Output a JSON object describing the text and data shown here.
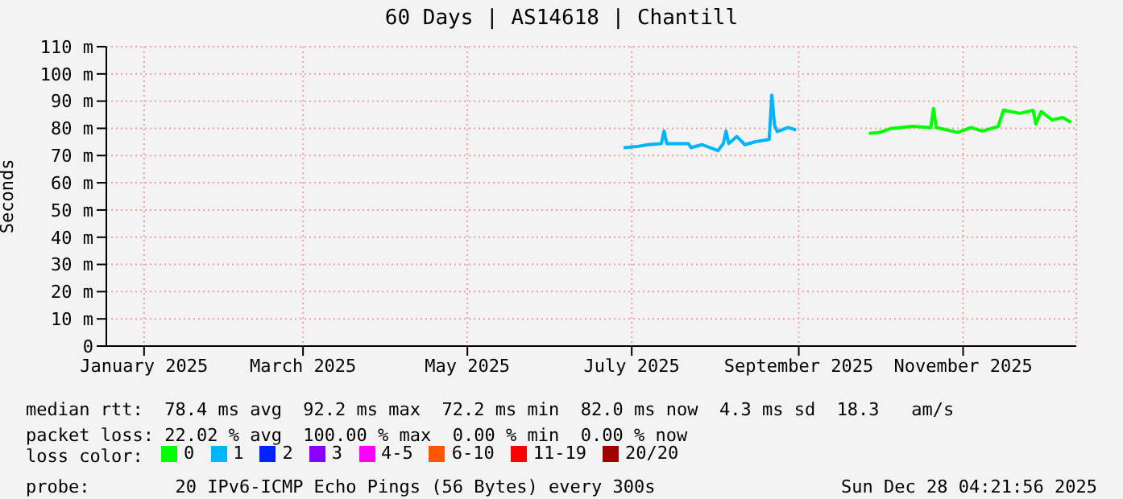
{
  "chart_data": {
    "type": "line",
    "title": "60 Days | AS14618 | Chantill",
    "ylabel": "Seconds",
    "xlim": [
      "2025-01-02",
      "2025-12-28"
    ],
    "xticks": [
      {
        "value": "2025-01-16",
        "label": "January 2025"
      },
      {
        "value": "2025-03-16",
        "label": "March 2025"
      },
      {
        "value": "2025-05-16",
        "label": "May 2025"
      },
      {
        "value": "2025-07-16",
        "label": "July 2025"
      },
      {
        "value": "2025-09-16",
        "label": "September 2025"
      },
      {
        "value": "2025-11-16",
        "label": "November 2025"
      }
    ],
    "ylim": [
      0,
      110
    ],
    "yticks": [
      0,
      {
        "value": 10,
        "label": "10 m"
      },
      {
        "value": 20,
        "label": "20 m"
      },
      {
        "value": 30,
        "label": "30 m"
      },
      {
        "value": 40,
        "label": "40 m"
      },
      {
        "value": 50,
        "label": "50 m"
      },
      {
        "value": 60,
        "label": "60 m"
      },
      {
        "value": 70,
        "label": "70 m"
      },
      {
        "value": 80,
        "label": "80 m"
      },
      {
        "value": 90,
        "label": "90 m"
      },
      {
        "value": 100,
        "label": "100 m"
      },
      {
        "value": 110,
        "label": "110 m"
      }
    ],
    "grid": true,
    "legend": "bottom",
    "legend_title": "loss color:",
    "series": [
      {
        "name": "0",
        "color": "#00ff00",
        "x": [
          "2025-10-12",
          "2025-10-16",
          "2025-10-20",
          "2025-10-28",
          "2025-11-04",
          "2025-11-05",
          "2025-11-06",
          "2025-11-09",
          "2025-11-14",
          "2025-11-19",
          "2025-11-23",
          "2025-11-29",
          "2025-12-01",
          "2025-12-07",
          "2025-12-12",
          "2025-12-13",
          "2025-12-15",
          "2025-12-19",
          "2025-12-23",
          "2025-12-26"
        ],
        "values": [
          78.1,
          78.5,
          79.9,
          80.7,
          80.3,
          87.3,
          80.3,
          79.6,
          78.5,
          80.3,
          79,
          80.7,
          86.7,
          85.5,
          86.6,
          81.6,
          86.2,
          83.1,
          84,
          82.2
        ]
      },
      {
        "name": "1",
        "color": "#00b4ff",
        "x": [
          "2025-07-13",
          "2025-07-18",
          "2025-07-22",
          "2025-07-27",
          "2025-07-28",
          "2025-07-29",
          "2025-08-06",
          "2025-08-07",
          "2025-08-11",
          "2025-08-17",
          "2025-08-19",
          "2025-08-20",
          "2025-08-21",
          "2025-08-24",
          "2025-08-27",
          "2025-08-31",
          "2025-09-05",
          "2025-09-06",
          "2025-09-07",
          "2025-09-08",
          "2025-09-12",
          "2025-09-15"
        ],
        "values": [
          72.9,
          73.3,
          74,
          74.4,
          79,
          74.4,
          74.4,
          72.9,
          74,
          71.8,
          74.4,
          79,
          74.4,
          77,
          74,
          75.1,
          75.9,
          92.2,
          81.2,
          78.8,
          80.3,
          79.4
        ]
      },
      {
        "name": "2",
        "color": "#0022ff"
      },
      {
        "name": "3",
        "color": "#8a00ff"
      },
      {
        "name": "4-5",
        "color": "#ff00ff"
      },
      {
        "name": "6-10",
        "color": "#ff5500"
      },
      {
        "name": "11-19",
        "color": "#ff0000"
      },
      {
        "name": "20/20",
        "color": "#a10000"
      }
    ],
    "annotations": [
      "median rtt:  78.4 ms avg  92.2 ms max  72.2 ms min  82.0 ms now  4.3 ms sd  18.3   am/s",
      "packet loss: 22.02 % avg  100.00 % max  0.00 % min  0.00 % now",
      "probe:        20 IPv6-ICMP Echo Pings (56 Bytes) every 300s",
      "Sun Dec 28 04:21:56 2025"
    ]
  }
}
